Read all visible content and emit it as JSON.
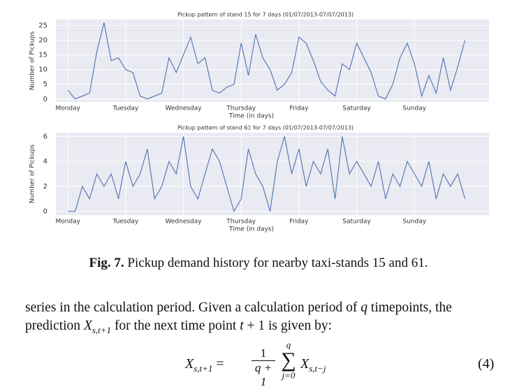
{
  "chart_data": [
    {
      "type": "line",
      "title": "Pickup pattern of stand 15 for 7 days (01/07/2013-07/07/2013)",
      "x_label": "Time (in days)",
      "y_label": "Number of Pickups",
      "color": "#4c72b0",
      "grid": true,
      "x": [
        0,
        3,
        6,
        9,
        12,
        15,
        18,
        21,
        24,
        27,
        30,
        33,
        36,
        39,
        42,
        45,
        48,
        51,
        54,
        57,
        60,
        63,
        66,
        69,
        72,
        75,
        78,
        81,
        84,
        87,
        90,
        93,
        96,
        99,
        102,
        105,
        108,
        111,
        114,
        117,
        120,
        123,
        126,
        129,
        132,
        135,
        138,
        141,
        144,
        147,
        150,
        153,
        156,
        159,
        162,
        165
      ],
      "values": [
        3,
        0,
        1,
        2,
        16,
        26,
        13,
        14,
        10,
        9,
        1,
        0,
        1,
        2,
        14,
        9,
        15,
        21,
        12,
        14,
        3,
        2,
        4,
        5,
        19,
        8,
        22,
        14,
        10,
        3,
        5,
        9,
        21,
        19,
        13,
        6,
        3,
        1,
        12,
        10,
        19,
        14,
        9,
        1,
        0,
        5,
        14,
        19,
        12,
        1,
        8,
        2,
        14,
        3,
        11,
        20
      ],
      "xlim": [
        -5,
        175
      ],
      "ylim": [
        -1,
        27
      ],
      "xticks": [
        {
          "value": 0,
          "label": "Monday"
        },
        {
          "value": 24,
          "label": "Tuesday"
        },
        {
          "value": 48,
          "label": "Wednesday"
        },
        {
          "value": 72,
          "label": "Thursday"
        },
        {
          "value": 96,
          "label": "Friday"
        },
        {
          "value": 120,
          "label": "Saturday"
        },
        {
          "value": 144,
          "label": "Sunday"
        }
      ],
      "yticks": [
        0,
        5,
        10,
        15,
        20,
        25
      ]
    },
    {
      "type": "line",
      "title": "Pickup pattern of stand 61 for 7 days (01/07/2013-07/07/2013)",
      "x_label": "Time (in days)",
      "y_label": "Number of Pickups",
      "color": "#4c72b0",
      "grid": true,
      "x": [
        0,
        3,
        6,
        9,
        12,
        15,
        18,
        21,
        24,
        27,
        30,
        33,
        36,
        39,
        42,
        45,
        48,
        51,
        54,
        57,
        60,
        63,
        66,
        69,
        72,
        75,
        78,
        81,
        84,
        87,
        90,
        93,
        96,
        99,
        102,
        105,
        108,
        111,
        114,
        117,
        120,
        123,
        126,
        129,
        132,
        135,
        138,
        141,
        144,
        147,
        150,
        153,
        156,
        159,
        162,
        165
      ],
      "values": [
        0,
        0,
        2,
        1,
        3,
        2,
        3,
        1,
        4,
        2,
        3,
        5,
        1,
        2,
        4,
        3,
        6,
        2,
        1,
        3,
        5,
        4,
        2,
        0,
        1,
        5,
        3,
        2,
        0,
        4,
        6,
        3,
        5,
        2,
        4,
        3,
        5,
        1,
        6,
        3,
        4,
        3,
        2,
        4,
        1,
        3,
        2,
        4,
        3,
        2,
        4,
        1,
        3,
        2,
        3,
        1
      ],
      "xlim": [
        -5,
        175
      ],
      "ylim": [
        -0.3,
        6.3
      ],
      "xticks": [
        {
          "value": 0,
          "label": "Monday"
        },
        {
          "value": 24,
          "label": "Tuesday"
        },
        {
          "value": 48,
          "label": "Wednesday"
        },
        {
          "value": 72,
          "label": "Thursday"
        },
        {
          "value": 96,
          "label": "Friday"
        },
        {
          "value": 120,
          "label": "Saturday"
        },
        {
          "value": 144,
          "label": "Sunday"
        }
      ],
      "yticks": [
        0,
        2,
        4,
        6
      ]
    }
  ],
  "caption": {
    "label": "Fig. 7.",
    "text": "Pickup demand history for nearby taxi-stands 15 and 61."
  },
  "paragraph": {
    "line1_a": "series in the calculation period. Given a calculation period of",
    "line1_var": "q",
    "line1_b": "timepoints, the",
    "line2_a": "prediction",
    "line2_var": "X",
    "line2_sub": "s,t+1",
    "line2_b": "for the next time point",
    "line2_var2": "t",
    "line2_c": "+ 1 is given by:"
  },
  "equation": {
    "lhs": "X",
    "lhs_sub": "s,t+1",
    "equals": "=",
    "numerator": "1",
    "denominator": "q + 1",
    "sum": "∑",
    "sum_top": "q",
    "sum_bottom": "j=0",
    "rhs": "X",
    "rhs_sub": "s,t−j",
    "number": "(4)"
  }
}
